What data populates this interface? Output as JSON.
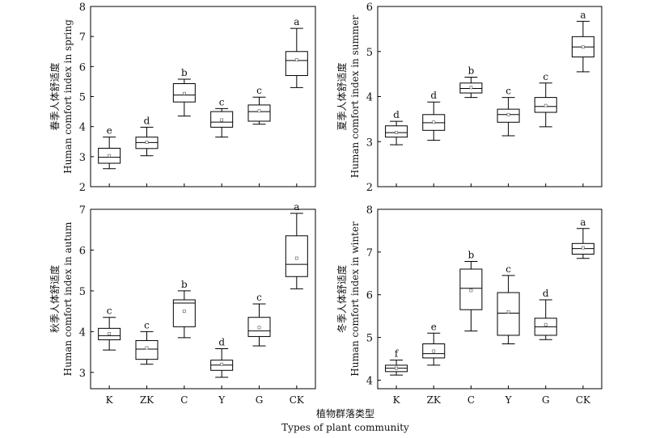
{
  "chart_data": [
    {
      "type": "box",
      "panel": "spring",
      "ylabel_cn": "春季人体舒适度",
      "ylabel_en": "Human comfort index in spring",
      "ylim": [
        2,
        8
      ],
      "yticks": [
        2,
        3,
        4,
        5,
        6,
        7,
        8
      ],
      "categories": [
        "K",
        "ZK",
        "C",
        "Y",
        "G",
        "CK"
      ],
      "show_xticklabels": false,
      "boxes": [
        {
          "category": "K",
          "min": 2.6,
          "q1": 2.78,
          "median": 2.98,
          "q3": 3.28,
          "max": 3.65,
          "mean": 3.03,
          "letter": "e"
        },
        {
          "category": "ZK",
          "min": 3.03,
          "q1": 3.27,
          "median": 3.47,
          "q3": 3.65,
          "max": 3.98,
          "mean": 3.48,
          "letter": "d"
        },
        {
          "category": "C",
          "min": 4.35,
          "q1": 4.82,
          "median": 5.05,
          "q3": 5.43,
          "max": 5.58,
          "mean": 5.1,
          "letter": "b"
        },
        {
          "category": "Y",
          "min": 3.65,
          "q1": 3.98,
          "median": 4.15,
          "q3": 4.5,
          "max": 4.6,
          "mean": 4.22,
          "letter": "c"
        },
        {
          "category": "G",
          "min": 4.08,
          "q1": 4.18,
          "median": 4.5,
          "q3": 4.72,
          "max": 4.98,
          "mean": 4.52,
          "letter": "c"
        },
        {
          "category": "CK",
          "min": 5.3,
          "q1": 5.7,
          "median": 6.2,
          "q3": 6.5,
          "max": 7.27,
          "mean": 6.22,
          "letter": "a"
        }
      ]
    },
    {
      "type": "box",
      "panel": "summer",
      "ylabel_cn": "夏季人体舒适度",
      "ylabel_en": "Human comfort index in summer",
      "ylim": [
        2,
        6
      ],
      "yticks": [
        2,
        3,
        4,
        5,
        6
      ],
      "categories": [
        "K",
        "ZK",
        "C",
        "Y",
        "G",
        "CK"
      ],
      "show_xticklabels": false,
      "boxes": [
        {
          "category": "K",
          "min": 2.93,
          "q1": 3.1,
          "median": 3.2,
          "q3": 3.35,
          "max": 3.45,
          "mean": 3.2,
          "letter": "d"
        },
        {
          "category": "ZK",
          "min": 3.03,
          "q1": 3.25,
          "median": 3.42,
          "q3": 3.6,
          "max": 3.88,
          "mean": 3.43,
          "letter": "d"
        },
        {
          "category": "C",
          "min": 3.98,
          "q1": 4.08,
          "median": 4.18,
          "q3": 4.3,
          "max": 4.43,
          "mean": 4.2,
          "letter": "b"
        },
        {
          "category": "Y",
          "min": 3.13,
          "q1": 3.43,
          "median": 3.6,
          "q3": 3.72,
          "max": 3.98,
          "mean": 3.6,
          "letter": "c"
        },
        {
          "category": "G",
          "min": 3.33,
          "q1": 3.65,
          "median": 3.78,
          "q3": 3.98,
          "max": 4.3,
          "mean": 3.8,
          "letter": "c"
        },
        {
          "category": "CK",
          "min": 4.55,
          "q1": 4.88,
          "median": 5.1,
          "q3": 5.33,
          "max": 5.67,
          "mean": 5.1,
          "letter": "a"
        }
      ]
    },
    {
      "type": "box",
      "panel": "autumn",
      "ylabel_cn": "秋季人体舒适度",
      "ylabel_en": "Human comfort index in autum",
      "ylim": [
        2.6,
        7
      ],
      "yticks": [
        3,
        4,
        5,
        6,
        7
      ],
      "categories": [
        "K",
        "ZK",
        "C",
        "Y",
        "G",
        "CK"
      ],
      "show_xticklabels": true,
      "boxes": [
        {
          "category": "K",
          "min": 3.55,
          "q1": 3.8,
          "median": 3.9,
          "q3": 4.08,
          "max": 4.35,
          "mean": 3.95,
          "letter": "c"
        },
        {
          "category": "ZK",
          "min": 3.2,
          "q1": 3.32,
          "median": 3.57,
          "q3": 3.78,
          "max": 4.0,
          "mean": 3.6,
          "letter": "c"
        },
        {
          "category": "C",
          "min": 3.85,
          "q1": 4.12,
          "median": 4.7,
          "q3": 4.78,
          "max": 5.0,
          "mean": 4.5,
          "letter": "b"
        },
        {
          "category": "Y",
          "min": 2.88,
          "q1": 3.05,
          "median": 3.18,
          "q3": 3.3,
          "max": 3.58,
          "mean": 3.2,
          "letter": "d"
        },
        {
          "category": "G",
          "min": 3.65,
          "q1": 3.88,
          "median": 4.02,
          "q3": 4.35,
          "max": 4.68,
          "mean": 4.1,
          "letter": "c"
        },
        {
          "category": "CK",
          "min": 5.05,
          "q1": 5.35,
          "median": 5.65,
          "q3": 6.35,
          "max": 6.9,
          "mean": 5.8,
          "letter": "a"
        }
      ]
    },
    {
      "type": "box",
      "panel": "winter",
      "ylabel_cn": "冬季人体舒适度",
      "ylabel_en": "Human comfort index in winter",
      "ylim": [
        3.8,
        8
      ],
      "yticks": [
        4,
        5,
        6,
        7,
        8
      ],
      "categories": [
        "K",
        "ZK",
        "C",
        "Y",
        "G",
        "CK"
      ],
      "show_xticklabels": true,
      "boxes": [
        {
          "category": "K",
          "min": 4.12,
          "q1": 4.2,
          "median": 4.28,
          "q3": 4.35,
          "max": 4.47,
          "mean": 4.28,
          "letter": "f"
        },
        {
          "category": "ZK",
          "min": 4.35,
          "q1": 4.52,
          "median": 4.62,
          "q3": 4.85,
          "max": 5.1,
          "mean": 4.68,
          "letter": "e"
        },
        {
          "category": "C",
          "min": 5.15,
          "q1": 5.65,
          "median": 6.15,
          "q3": 6.6,
          "max": 6.78,
          "mean": 6.1,
          "letter": "b"
        },
        {
          "category": "Y",
          "min": 4.85,
          "q1": 5.05,
          "median": 5.57,
          "q3": 6.05,
          "max": 6.45,
          "mean": 5.6,
          "letter": "c"
        },
        {
          "category": "G",
          "min": 4.95,
          "q1": 5.05,
          "median": 5.25,
          "q3": 5.45,
          "max": 5.88,
          "mean": 5.3,
          "letter": "d"
        },
        {
          "category": "CK",
          "min": 6.85,
          "q1": 6.95,
          "median": 7.08,
          "q3": 7.2,
          "max": 7.55,
          "mean": 7.1,
          "letter": "a"
        }
      ]
    }
  ],
  "xlabel_cn": "植物群落类型",
  "xlabel_en": "Types of plant community"
}
